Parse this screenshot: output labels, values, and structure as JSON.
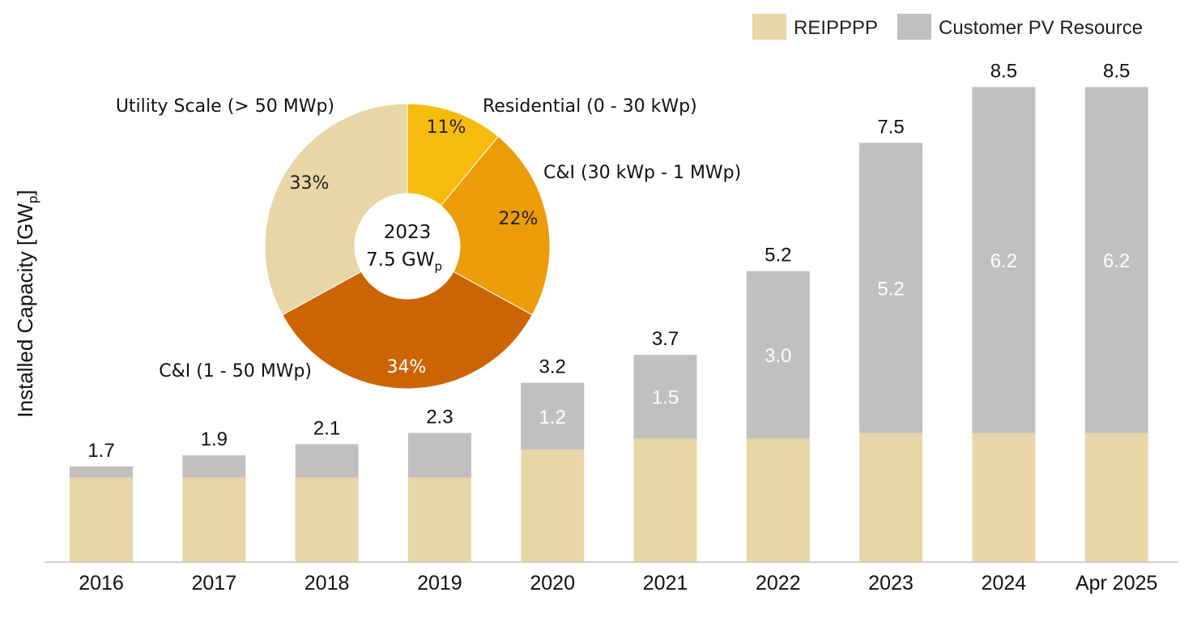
{
  "colors": {
    "reipppp": "#e8d6a6",
    "customer": "#c0c0c0",
    "axis": "#cfcfcf",
    "pie": [
      "#f6bc0c",
      "#ec9c08",
      "#cc6404",
      "#e8d6a6"
    ]
  },
  "chart_data": [
    {
      "type": "bar",
      "stacked": true,
      "ylabel": "Installed Capacity [GW",
      "ylabel_sub": "p",
      "ylabel_close": "]",
      "ylim": [
        0,
        9
      ],
      "legend_position": "top-right",
      "categories": [
        "2016",
        "2017",
        "2018",
        "2019",
        "2020",
        "2021",
        "2022",
        "2023",
        "2024",
        "Apr 2025"
      ],
      "totals": [
        "1.7",
        "1.9",
        "2.1",
        "2.3",
        "3.2",
        "3.7",
        "5.2",
        "7.5",
        "8.5",
        "8.5"
      ],
      "series": [
        {
          "name": "REIPPPP",
          "values": [
            1.5,
            1.5,
            1.5,
            1.5,
            2.0,
            2.2,
            2.2,
            2.3,
            2.3,
            2.3
          ]
        },
        {
          "name": "Customer PV Resource",
          "values": [
            0.2,
            0.4,
            0.6,
            0.8,
            1.2,
            1.5,
            3.0,
            5.2,
            6.2,
            6.2
          ],
          "labels": [
            "",
            "",
            "",
            "",
            "1.2",
            "1.5",
            "3.0",
            "5.2",
            "6.2",
            "6.2"
          ]
        }
      ]
    },
    {
      "type": "pie",
      "donut": true,
      "center_line1": "2023",
      "center_line2": "7.5 GW",
      "center_sub": "p",
      "slices": [
        {
          "label": "Residential (0 - 30 kWp)",
          "value": 11,
          "pct": "11%"
        },
        {
          "label": "C&I (30 kWp - 1 MWp)",
          "value": 22,
          "pct": "22%"
        },
        {
          "label": "C&I (1 - 50 MWp)",
          "value": 34,
          "pct": "34%"
        },
        {
          "label": "Utility Scale (> 50 MWp)",
          "value": 33,
          "pct": "33%"
        }
      ]
    }
  ]
}
